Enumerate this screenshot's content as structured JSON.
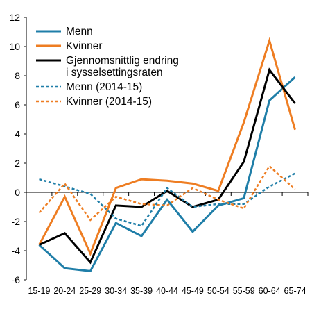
{
  "chart_data": {
    "type": "line",
    "title": "",
    "xlabel": "",
    "ylabel": "",
    "categories": [
      "15-19",
      "20-24",
      "25-29",
      "30-34",
      "35-39",
      "40-44",
      "45-49",
      "50-54",
      "55-59",
      "60-64",
      "65-74"
    ],
    "ylim": [
      -6,
      12
    ],
    "yticks": [
      -6,
      -4,
      -2,
      0,
      2,
      4,
      6,
      8,
      10,
      12
    ],
    "grid": false,
    "legend_position": "top-left",
    "series": [
      {
        "name": "Menn",
        "color": "#1f7ea8",
        "style": "solid",
        "values": [
          -3.6,
          -5.2,
          -5.4,
          -2.1,
          -3.0,
          -0.5,
          -2.7,
          -0.9,
          -0.4,
          6.3,
          7.9
        ]
      },
      {
        "name": "Kvinner",
        "color": "#ee7d22",
        "style": "solid",
        "values": [
          -3.6,
          -0.3,
          -4.2,
          0.3,
          0.9,
          0.8,
          0.6,
          0.1,
          4.8,
          10.4,
          4.3
        ]
      },
      {
        "name": "Gjennomsnittlig endring i sysselsettingsraten",
        "legend_lines": [
          "Gjennomsnittlig endring",
          "i sysselsettingsraten"
        ],
        "color": "#000000",
        "style": "solid",
        "values": [
          -3.6,
          -2.8,
          -4.8,
          -0.9,
          -1.0,
          0.1,
          -1.0,
          -0.5,
          2.1,
          8.4,
          6.1
        ]
      },
      {
        "name": "Menn (2014-15)",
        "color": "#1f7ea8",
        "style": "dashed",
        "values": [
          0.9,
          0.4,
          -0.1,
          -1.8,
          -2.3,
          0.3,
          -1.0,
          -0.8,
          -0.8,
          0.4,
          1.3
        ]
      },
      {
        "name": "Kvinner (2014-15)",
        "color": "#ee7d22",
        "style": "dashed",
        "values": [
          -1.4,
          0.6,
          -1.9,
          -0.3,
          -0.8,
          -0.9,
          0.3,
          -0.5,
          -1.1,
          1.8,
          0.2
        ]
      }
    ]
  }
}
